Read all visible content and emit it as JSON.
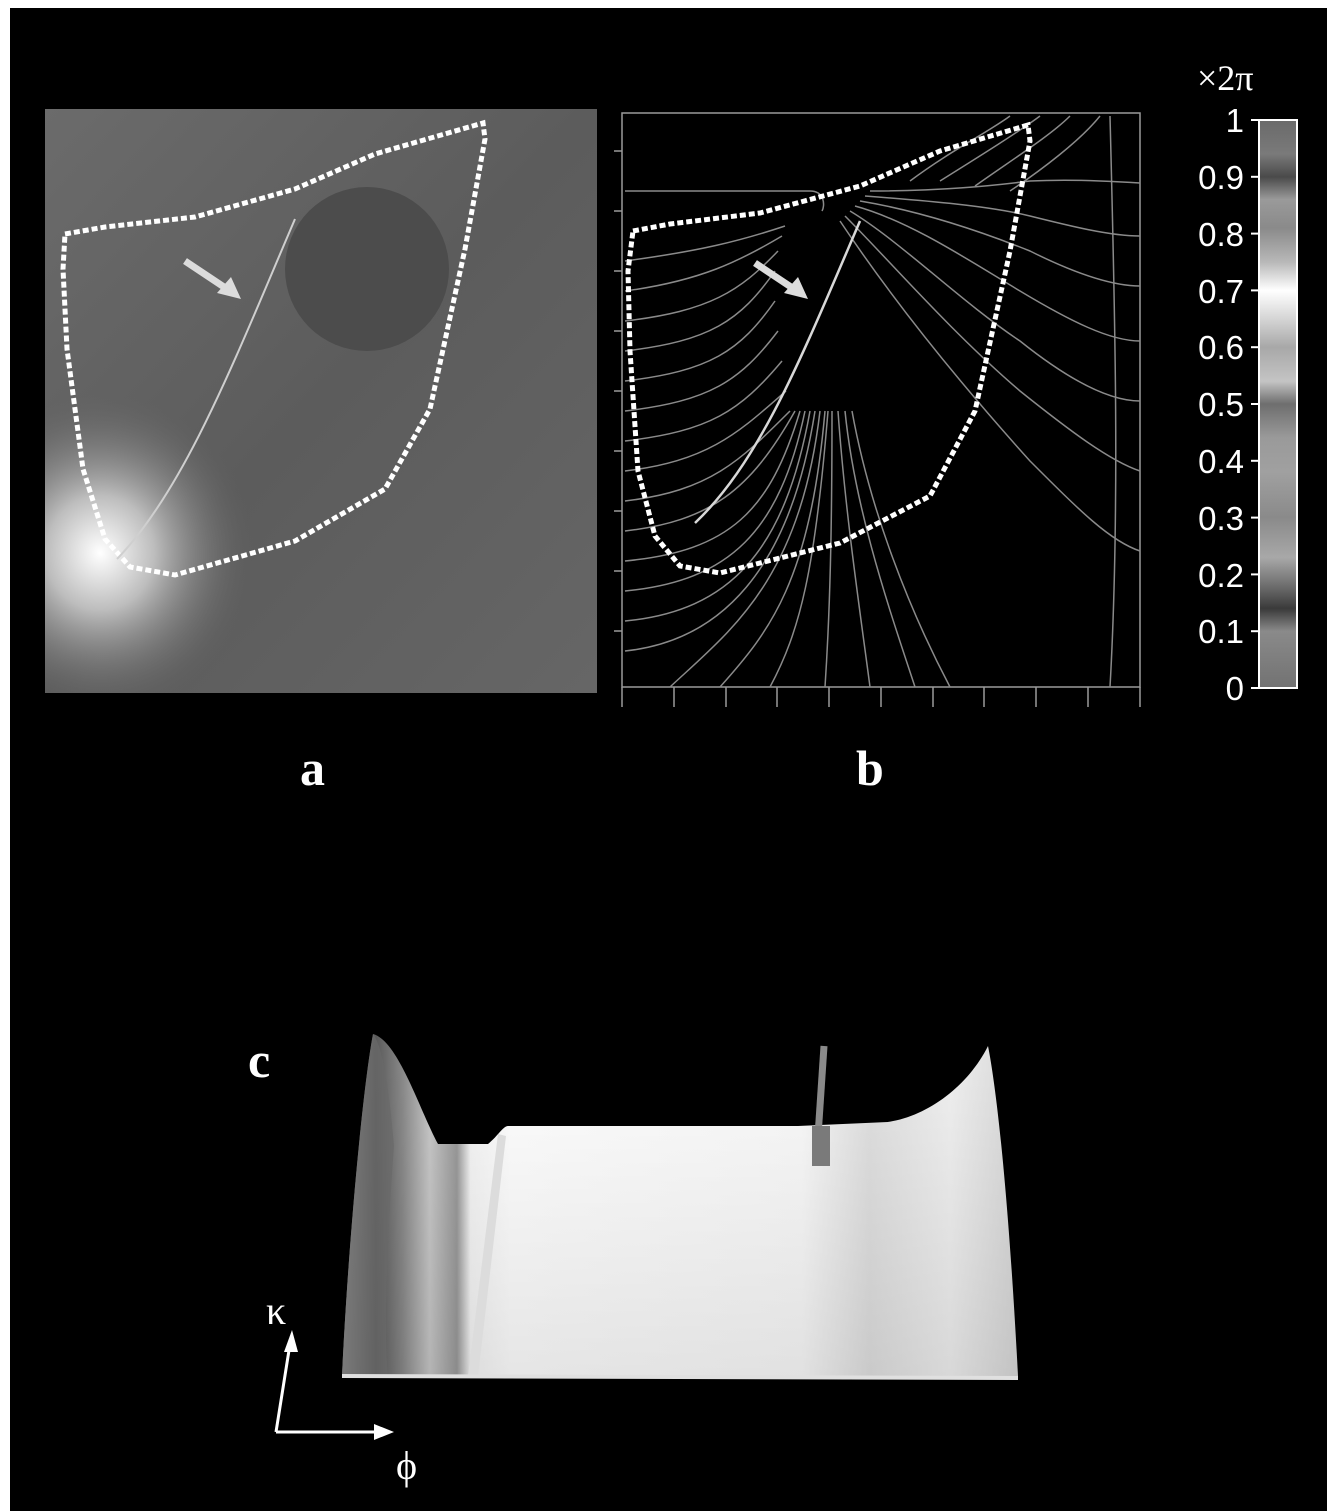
{
  "panels": {
    "a": {
      "label": "a"
    },
    "b": {
      "label": "b"
    },
    "c": {
      "label": "c",
      "axis_up": "κ",
      "axis_right": "ϕ"
    }
  },
  "colorbar": {
    "unit": "×2π",
    "ticks": [
      "1",
      "0.9",
      "0.8",
      "0.7",
      "0.6",
      "0.5",
      "0.4",
      "0.3",
      "0.2",
      "0.1",
      "0"
    ]
  },
  "colors": {
    "background": "#000000",
    "boundary": "#ffffff",
    "contour": "#8a8a8a"
  }
}
